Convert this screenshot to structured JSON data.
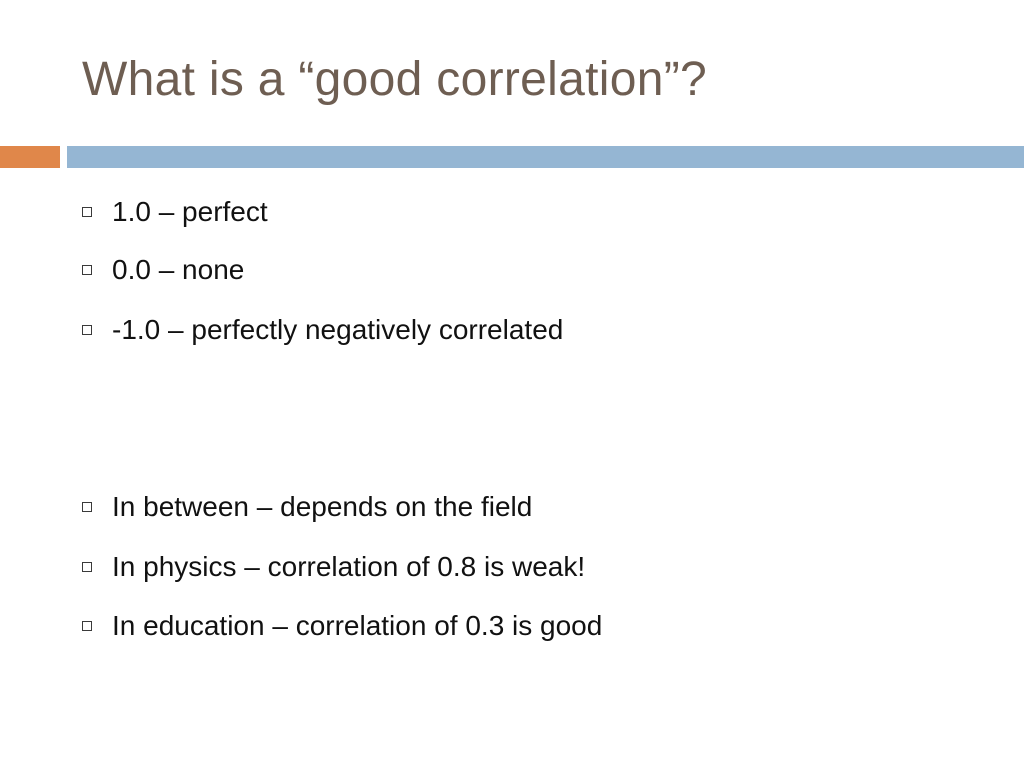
{
  "slide": {
    "title": "What is a “good correlation”?",
    "bullets": [
      "1.0 – perfect",
      "0.0 – none",
      "-1.0 – perfectly negatively correlated",
      "In between – depends on the field",
      "In physics – correlation of 0.8 is weak!",
      "In education – correlation of 0.3 is good"
    ]
  },
  "colors": {
    "title": "#6e5e52",
    "accent_orange": "#e0874a",
    "accent_blue": "#95b6d3"
  },
  "icons": {
    "bullet": "square-bullet-icon"
  }
}
